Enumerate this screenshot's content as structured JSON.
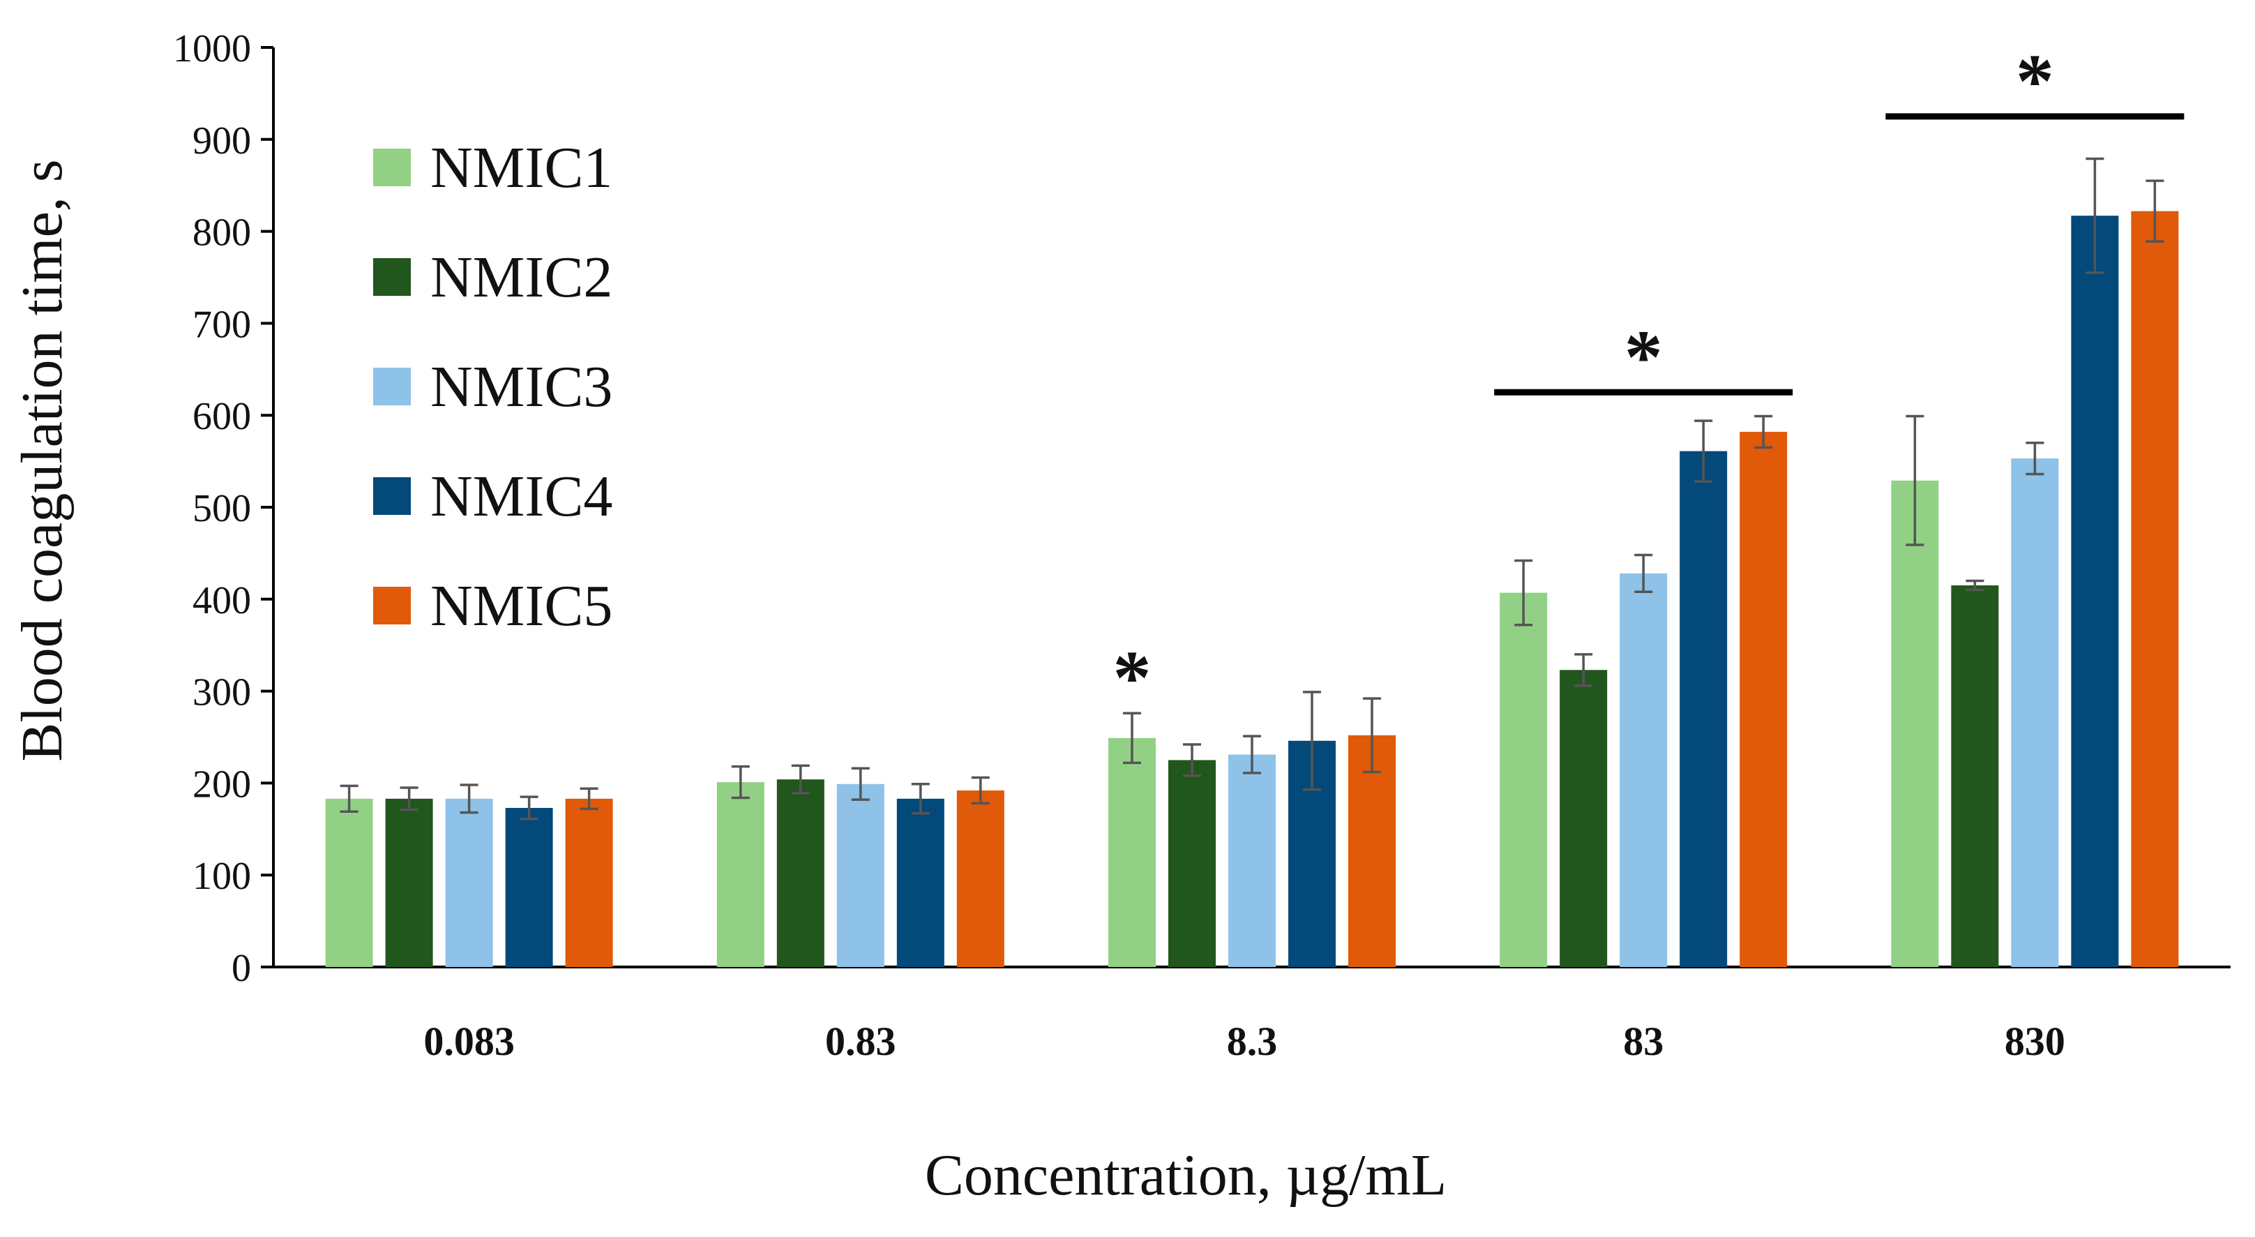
{
  "chart_data": {
    "type": "bar",
    "title": "",
    "xlabel": "Concentration, µg/mL",
    "ylabel": "Blood coagulation time, s",
    "ylim": [
      0,
      1000
    ],
    "yticks": [
      0,
      100,
      200,
      300,
      400,
      500,
      600,
      700,
      800,
      900,
      1000
    ],
    "categories": [
      "0.083",
      "0.83",
      "8.3",
      "83",
      "830"
    ],
    "legend_position": "top-left",
    "grid": false,
    "series": [
      {
        "name": "NMIC1",
        "color": "#92d185",
        "values": [
          183,
          201,
          249,
          407,
          529
        ],
        "errors": [
          14,
          17,
          27,
          35,
          70
        ]
      },
      {
        "name": "NMIC2",
        "color": "#21561c",
        "values": [
          183,
          204,
          225,
          323,
          415
        ],
        "errors": [
          12,
          15,
          17,
          17,
          5
        ]
      },
      {
        "name": "NMIC3",
        "color": "#8ec2e8",
        "values": [
          183,
          199,
          231,
          428,
          553
        ],
        "errors": [
          15,
          17,
          20,
          20,
          17
        ]
      },
      {
        "name": "NMIC4",
        "color": "#03497a",
        "values": [
          173,
          183,
          246,
          561,
          817
        ],
        "errors": [
          12,
          16,
          53,
          33,
          62
        ]
      },
      {
        "name": "NMIC5",
        "color": "#e05a0a",
        "values": [
          183,
          192,
          252,
          582,
          822
        ],
        "errors": [
          11,
          14,
          40,
          17,
          33
        ]
      }
    ],
    "annotations": [
      {
        "text": "*",
        "type": "marker",
        "category": "8.3",
        "series": "NMIC1"
      },
      {
        "text": "*",
        "type": "bracket",
        "category": "83",
        "from_series": "NMIC1",
        "to_series": "NMIC5",
        "level": 625
      },
      {
        "text": "*",
        "type": "bracket",
        "category": "830",
        "from_series": "NMIC1",
        "to_series": "NMIC5",
        "level": 925
      }
    ]
  }
}
